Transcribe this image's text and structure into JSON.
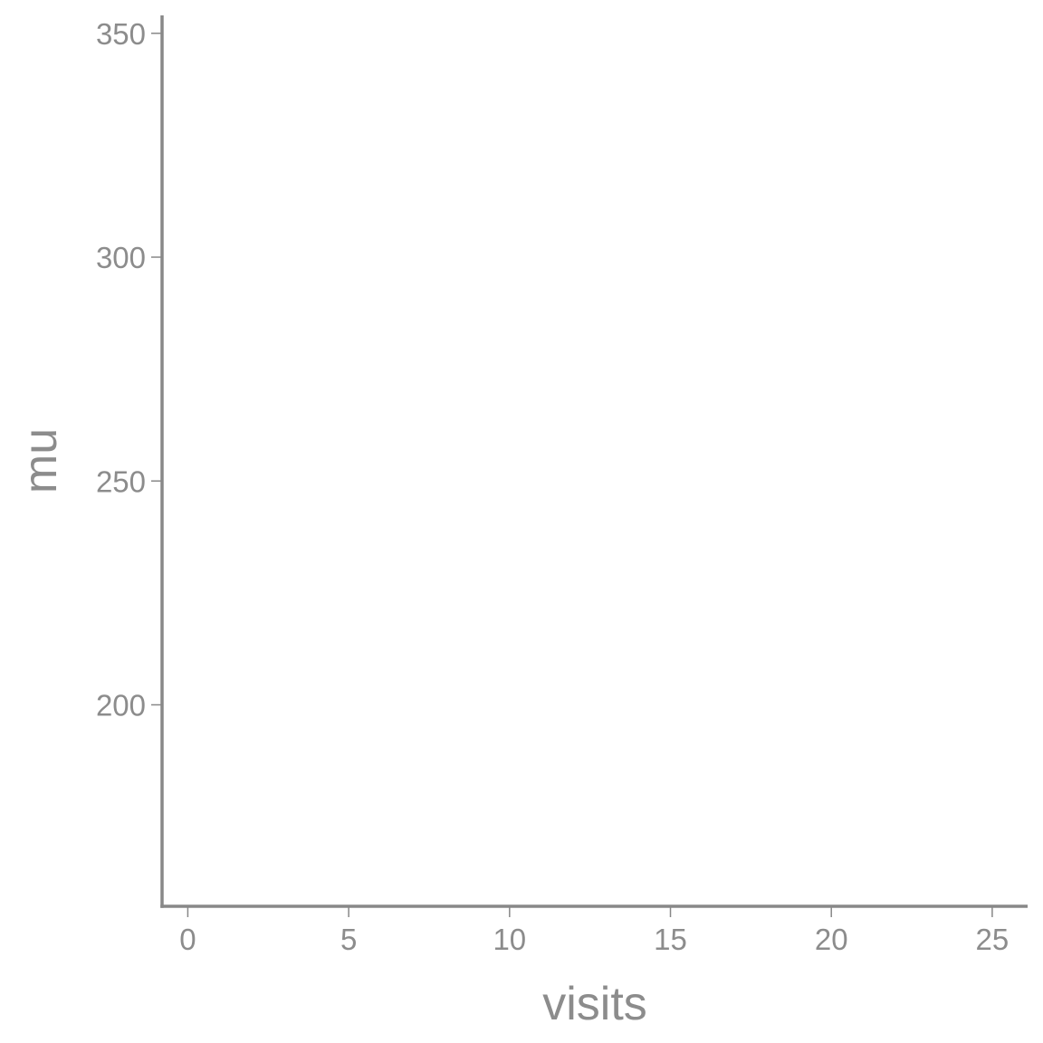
{
  "chart_data": {
    "type": "scatter",
    "title": "",
    "xlabel": "visits",
    "ylabel": "mu",
    "xlim": [
      -0.8,
      26.1
    ],
    "ylim": [
      155,
      354
    ],
    "x_ticks": [
      0,
      5,
      10,
      15,
      20,
      25
    ],
    "y_ticks": [
      200,
      250,
      300,
      350
    ],
    "grid": false,
    "legend": "none",
    "series": [],
    "axis_color": "#888888",
    "text_color": "#8c8c8c"
  }
}
